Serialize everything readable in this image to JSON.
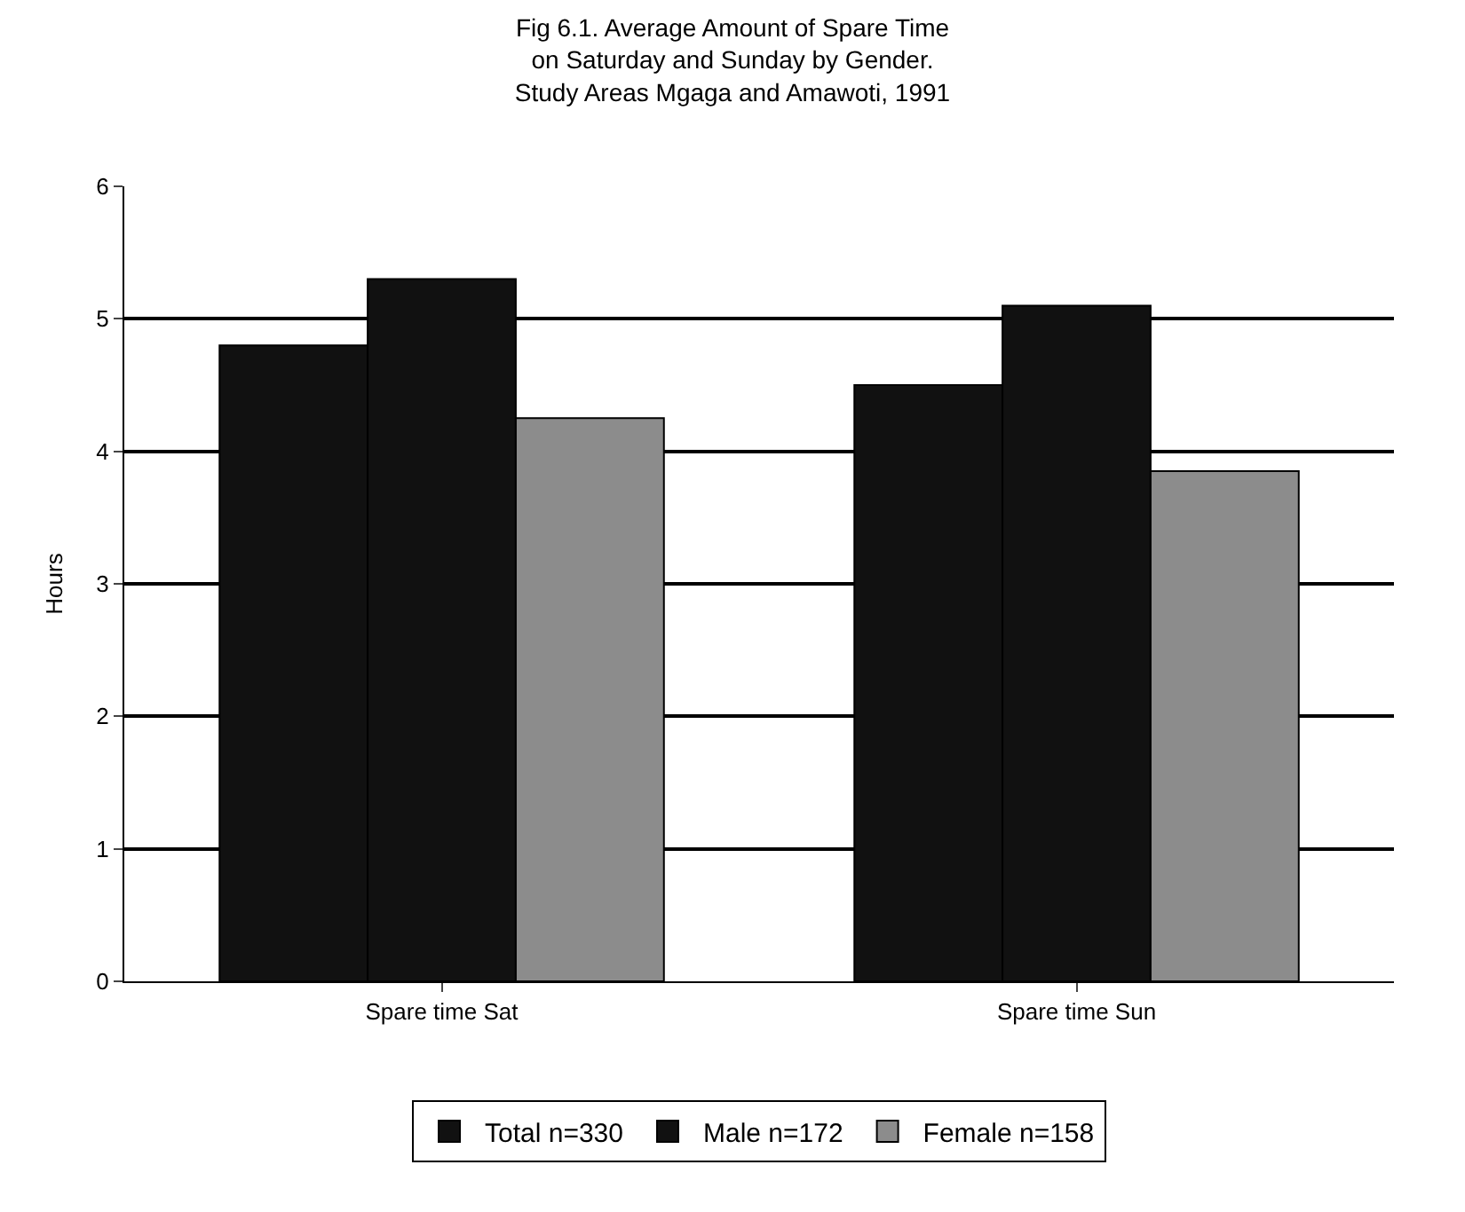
{
  "chart_data": {
    "type": "bar",
    "title": "Fig 6.1. Average Amount of Spare Time\non Saturday and Sunday by Gender.",
    "subtitle": "Study Areas Mgaga and Amawoti, 1991",
    "ylabel": "Hours",
    "categories": [
      "Spare time Sat",
      "Spare time Sun"
    ],
    "series": [
      {
        "name": "Total n=330",
        "color": "#111111",
        "values": [
          4.8,
          4.5
        ]
      },
      {
        "name": "Male n=172",
        "color": "#111111",
        "values": [
          5.3,
          5.1
        ]
      },
      {
        "name": "Female n=158",
        "color": "#8c8c8c",
        "values": [
          4.25,
          3.85
        ]
      }
    ],
    "ylim": [
      0,
      6
    ],
    "yticks": [
      0,
      1,
      2,
      3,
      4,
      5,
      6
    ],
    "grid": "y",
    "legend": "bottom"
  }
}
